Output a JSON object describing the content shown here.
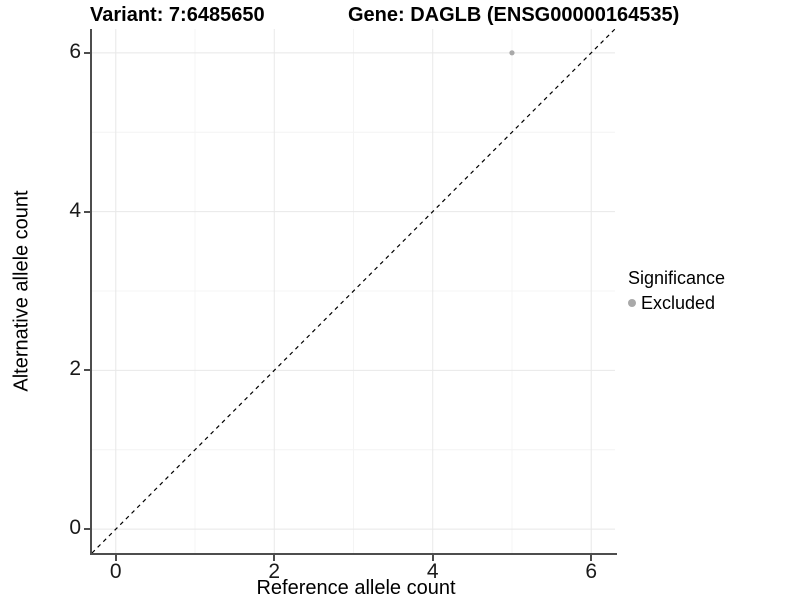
{
  "header": {
    "variant_title": "Variant: 7:6485650",
    "gene_title": "Gene: DAGLB (ENSG00000164535)"
  },
  "legend": {
    "title": "Significance",
    "items": [
      {
        "label": "Excluded",
        "color": "#a9a9a9"
      }
    ]
  },
  "colors": {
    "background": "#ffffff",
    "grid_major": "#e8e8e8",
    "grid_minor": "#f4f4f4",
    "axis_line": "#4d4d4d",
    "tick_mark": "#4d4d4d",
    "tick_text": "#1a1a1a",
    "title_text": "#000000",
    "point": "#a9a9a9",
    "reference_line": "#000000"
  },
  "chart_data": {
    "type": "scatter",
    "title": "Variant: 7:6485650   Gene: DAGLB (ENSG00000164535)",
    "xlabel": "Reference allele count",
    "ylabel": "Alternative allele count",
    "xlim": [
      -0.3,
      6.3
    ],
    "ylim": [
      -0.3,
      6.3
    ],
    "x_ticks": [
      0,
      2,
      4,
      6
    ],
    "y_ticks": [
      0,
      2,
      4,
      6
    ],
    "x_minor_ticks": [
      1,
      3,
      5
    ],
    "y_minor_ticks": [
      1,
      3,
      5
    ],
    "grid": "major+minor",
    "legend_position": "right",
    "legend_title": "Significance",
    "series": [
      {
        "name": "Excluded",
        "color": "#a9a9a9",
        "point_radius": 2.6,
        "points": [
          {
            "x": 5,
            "y": 6
          }
        ]
      }
    ],
    "reference_line": {
      "kind": "identity",
      "slope": 1,
      "intercept": 0,
      "linestyle": "dashed",
      "color": "#000000"
    }
  }
}
